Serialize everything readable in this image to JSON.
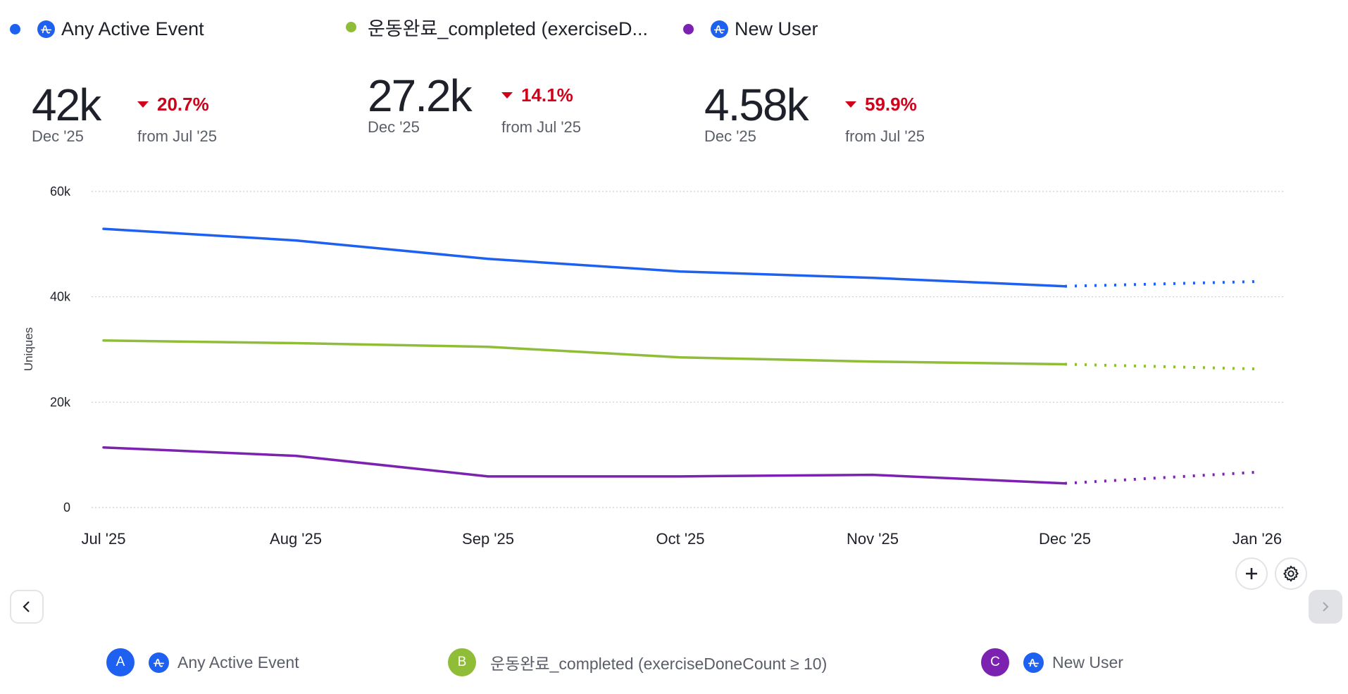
{
  "series_meta": [
    {
      "key": "A",
      "name": "Any Active Event",
      "legend_short": "Any Active Event",
      "legend_full": "Any Active Event",
      "color": "#1e61f0",
      "has_icon": true,
      "icon": "amplitude-logo-icon"
    },
    {
      "key": "B",
      "name": "운동완료_completed (exerciseDoneCount ≥ 10)",
      "legend_short": "운동완료_completed (exerciseD...",
      "legend_full": "운동완료_completed (exerciseDoneCount ≥ 10)",
      "color": "#8fbd37",
      "has_icon": false
    },
    {
      "key": "C",
      "name": "New User",
      "legend_short": "New User",
      "legend_full": "New User",
      "color": "#7b22b1",
      "has_icon": true,
      "icon": "amplitude-logo-icon"
    }
  ],
  "kpis": [
    {
      "value": "42k",
      "period": "Dec '25",
      "change": "20.7%",
      "direction": "down",
      "from": "from Jul '25"
    },
    {
      "value": "27.2k",
      "period": "Dec '25",
      "change": "14.1%",
      "direction": "down",
      "from": "from Jul '25"
    },
    {
      "value": "4.58k",
      "period": "Dec '25",
      "change": "59.9%",
      "direction": "down",
      "from": "from Jul '25"
    }
  ],
  "controls": {
    "add_button": "+",
    "settings_button": "settings",
    "prev_button": "previous",
    "next_button": "next"
  },
  "chart_data": {
    "type": "line",
    "title": "",
    "xlabel": "",
    "ylabel": "Uniques",
    "categories": [
      "Jul '25",
      "Aug '25",
      "Sep '25",
      "Oct '25",
      "Nov '25",
      "Dec '25",
      "Jan '26"
    ],
    "yticks": [
      0,
      20000,
      40000,
      60000
    ],
    "ytick_labels": [
      "0",
      "20k",
      "40k",
      "60k"
    ],
    "ylim": [
      0,
      60000
    ],
    "grid": true,
    "legend": "top",
    "incomplete_from_index": 5,
    "series": [
      {
        "name": "Any Active Event",
        "color": "#1e61f0",
        "values": [
          52900,
          50700,
          47200,
          44800,
          43600,
          42000,
          42900
        ]
      },
      {
        "name": "운동완료_completed (exerciseDoneCount ≥ 10)",
        "color": "#8fbd37",
        "values": [
          31700,
          31200,
          30500,
          28500,
          27700,
          27200,
          26300
        ]
      },
      {
        "name": "New User",
        "color": "#7b22b1",
        "values": [
          11400,
          9800,
          5900,
          5900,
          6200,
          4580,
          6700
        ]
      }
    ]
  }
}
